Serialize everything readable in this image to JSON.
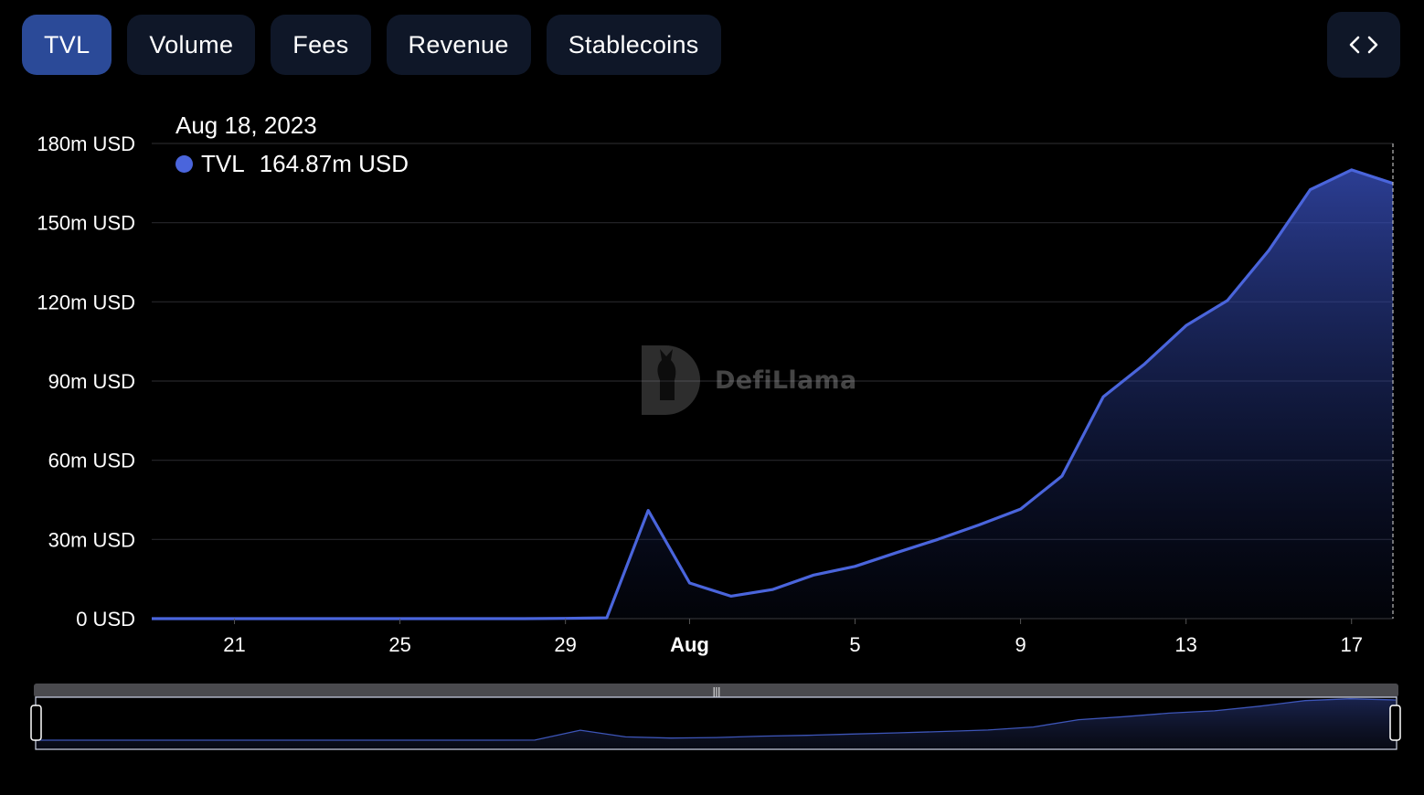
{
  "tabs": [
    {
      "label": "TVL",
      "active": true
    },
    {
      "label": "Volume",
      "active": false
    },
    {
      "label": "Fees",
      "active": false
    },
    {
      "label": "Revenue",
      "active": false
    },
    {
      "label": "Stablecoins",
      "active": false
    }
  ],
  "embed_icon": "code-icon",
  "tooltip": {
    "date": "Aug 18, 2023",
    "series_name": "TVL",
    "value": "164.87m USD"
  },
  "watermark": {
    "text": "DefiLlama",
    "icon": "llama-logo"
  },
  "colors": {
    "line": "#4a65dc",
    "active_tab": "#2b4a98",
    "tab_bg": "#0f1728",
    "grid": "#26262b"
  },
  "chart_data": {
    "type": "area",
    "x_axis_type": "date",
    "x": [
      "2023-07-19",
      "2023-07-20",
      "2023-07-21",
      "2023-07-22",
      "2023-07-23",
      "2023-07-24",
      "2023-07-25",
      "2023-07-26",
      "2023-07-27",
      "2023-07-28",
      "2023-07-29",
      "2023-07-30",
      "2023-07-31",
      "2023-08-01",
      "2023-08-02",
      "2023-08-03",
      "2023-08-04",
      "2023-08-05",
      "2023-08-06",
      "2023-08-07",
      "2023-08-08",
      "2023-08-09",
      "2023-08-10",
      "2023-08-11",
      "2023-08-12",
      "2023-08-13",
      "2023-08-14",
      "2023-08-15",
      "2023-08-16",
      "2023-08-17",
      "2023-08-18"
    ],
    "series": [
      {
        "name": "TVL",
        "values": [
          0,
          0,
          0,
          0,
          0,
          0,
          0,
          0,
          0,
          0,
          0.1,
          0.3,
          41,
          13.5,
          8.5,
          11,
          16.5,
          19.8,
          25,
          30,
          35.5,
          41.5,
          54,
          84,
          96.5,
          111,
          120.5,
          139.5,
          162.5,
          170,
          164.87
        ]
      }
    ],
    "y_ticks": [
      "0 USD",
      "30m USD",
      "60m USD",
      "90m USD",
      "120m USD",
      "150m USD",
      "180m USD"
    ],
    "x_ticks": [
      {
        "date": "2023-07-21",
        "label": "21",
        "bold": false
      },
      {
        "date": "2023-07-25",
        "label": "25",
        "bold": false
      },
      {
        "date": "2023-07-29",
        "label": "29",
        "bold": false
      },
      {
        "date": "2023-08-01",
        "label": "Aug",
        "bold": true
      },
      {
        "date": "2023-08-05",
        "label": "5",
        "bold": false
      },
      {
        "date": "2023-08-09",
        "label": "9",
        "bold": false
      },
      {
        "date": "2023-08-13",
        "label": "13",
        "bold": false
      },
      {
        "date": "2023-08-17",
        "label": "17",
        "bold": false
      }
    ],
    "ylim": [
      0,
      180
    ],
    "y_unit": "m USD",
    "grid": true,
    "hovered_date": "2023-08-18",
    "hovered_value": 164.87
  }
}
